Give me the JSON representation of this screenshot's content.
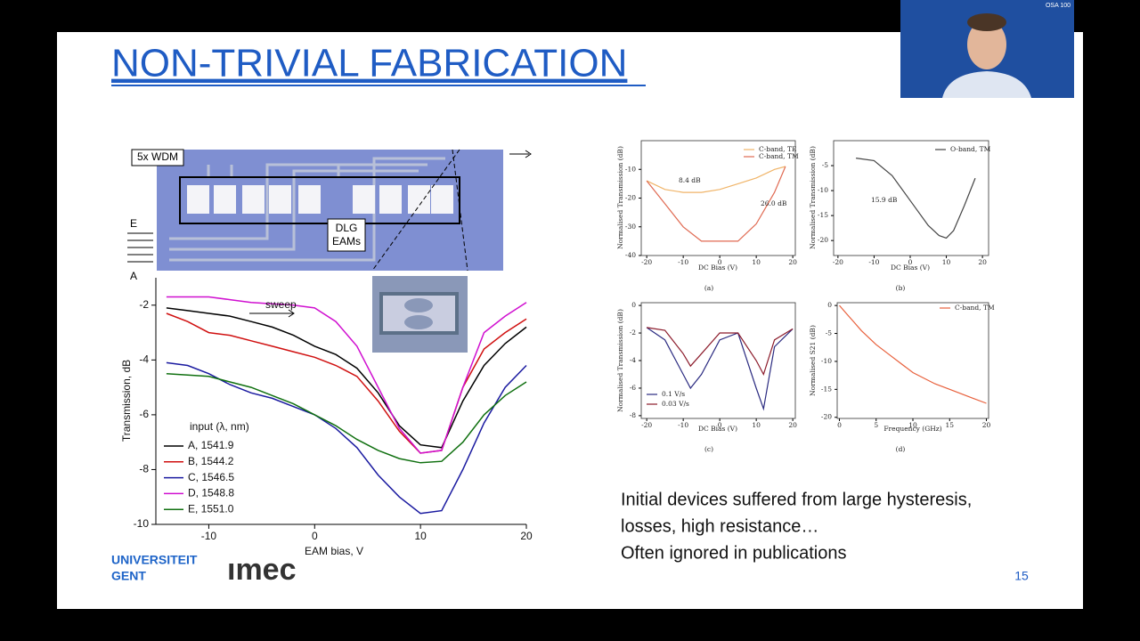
{
  "slide": {
    "title": "NON-TRIVIAL FABRICATION",
    "text_lines": [
      "Initial devices suffered from large hysteresis,",
      "losses, high resistance…",
      "Often ignored in publications"
    ],
    "page_number": "15"
  },
  "micrograph": {
    "labels": {
      "wdm": "5x WDM",
      "eam_line1": "DLG",
      "eam_line2": "EAMs",
      "e": "E",
      "a": "A"
    }
  },
  "logos": {
    "university_line1": "UNIVERSITEIT",
    "university_line2": "GENT",
    "imec": "ımec"
  },
  "webcam": {
    "badge": "OSA 100"
  },
  "chart_data": [
    {
      "type": "line",
      "xlabel": "EAM bias, V",
      "ylabel": "Transmission, dB",
      "annotation": "sweep",
      "legend_title": "input (λ, nm)",
      "x": [
        -14,
        -12,
        -10,
        -8,
        -6,
        -4,
        -2,
        0,
        2,
        4,
        6,
        8,
        10,
        12,
        14,
        16,
        18,
        20
      ],
      "xlim": [
        -15,
        20
      ],
      "xticks": [
        -10,
        0,
        10,
        20
      ],
      "ylim": [
        -10,
        -1
      ],
      "yticks": [
        -2,
        -4,
        -6,
        -8,
        -10
      ],
      "series": [
        {
          "name": "A, 1541.9",
          "color": "#000000",
          "values": [
            -2.1,
            -2.2,
            -2.3,
            -2.4,
            -2.6,
            -2.8,
            -3.1,
            -3.5,
            -3.8,
            -4.3,
            -5.2,
            -6.4,
            -7.1,
            -7.2,
            -5.5,
            -4.2,
            -3.4,
            -2.8
          ]
        },
        {
          "name": "B, 1544.2",
          "color": "#d01010",
          "values": [
            -2.3,
            -2.6,
            -3.0,
            -3.1,
            -3.3,
            -3.5,
            -3.7,
            -3.9,
            -4.2,
            -4.6,
            -5.5,
            -6.6,
            -7.4,
            -7.3,
            -5.0,
            -3.6,
            -3.0,
            -2.5
          ]
        },
        {
          "name": "C, 1546.5",
          "color": "#1a1aa0",
          "values": [
            -4.1,
            -4.2,
            -4.5,
            -4.9,
            -5.2,
            -5.4,
            -5.7,
            -6.0,
            -6.5,
            -7.2,
            -8.2,
            -9.0,
            -9.6,
            -9.5,
            -8.0,
            -6.3,
            -5.0,
            -4.2
          ]
        },
        {
          "name": "D, 1548.8",
          "color": "#d010d0",
          "values": [
            -1.7,
            -1.7,
            -1.7,
            -1.8,
            -1.9,
            -1.95,
            -2.0,
            -2.1,
            -2.6,
            -3.5,
            -5.0,
            -6.5,
            -7.4,
            -7.3,
            -5.0,
            -3.0,
            -2.4,
            -1.9
          ]
        },
        {
          "name": "E, 1551.0",
          "color": "#107010",
          "values": [
            -4.5,
            -4.55,
            -4.6,
            -4.8,
            -5.0,
            -5.3,
            -5.6,
            -6.0,
            -6.4,
            -6.9,
            -7.3,
            -7.6,
            -7.75,
            -7.7,
            -7.0,
            -6.0,
            -5.3,
            -4.8
          ]
        }
      ]
    },
    {
      "type": "line",
      "caption": "(a)",
      "xlabel": "DC Bias (V)",
      "ylabel": "Normalised Transmission (dB)",
      "annotations": [
        "8.4 dB",
        "26.0 dB"
      ],
      "x": [
        -20,
        -15,
        -10,
        -5,
        0,
        5,
        10,
        15,
        18
      ],
      "xlim": [
        -21.5,
        20.7
      ],
      "xticks": [
        -20,
        -10,
        0,
        10,
        20
      ],
      "ylim": [
        -40,
        0
      ],
      "yticks": [
        -10,
        -20,
        -30,
        -40
      ],
      "series": [
        {
          "name": "C-band, TE",
          "color": "#f0b468",
          "values": [
            -14,
            -17,
            -18,
            -18,
            -17,
            -15,
            -13,
            -10,
            -9
          ]
        },
        {
          "name": "C-band, TM",
          "color": "#e06a52",
          "values": [
            -14,
            -22,
            -30,
            -35,
            -35,
            -35,
            -29,
            -18,
            -9
          ]
        }
      ]
    },
    {
      "type": "line",
      "caption": "(b)",
      "xlabel": "DC Bias (V)",
      "ylabel": "Normalised Transmission (dB)",
      "annotations": [
        "15.9 dB"
      ],
      "x": [
        -15,
        -10,
        -5,
        0,
        5,
        8,
        10,
        12,
        15,
        18
      ],
      "xlim": [
        -21.2,
        21.7
      ],
      "xticks": [
        -20,
        -10,
        0,
        10,
        20
      ],
      "ylim": [
        -23,
        0
      ],
      "yticks": [
        -5,
        -10,
        -15,
        -20
      ],
      "series": [
        {
          "name": "O-band, TM",
          "color": "#444444",
          "values": [
            -3.5,
            -4,
            -7,
            -12,
            -17,
            -19,
            -19.5,
            -18,
            -13,
            -7.5
          ]
        }
      ]
    },
    {
      "type": "line",
      "caption": "(c)",
      "xlabel": "DC Bias (V)",
      "ylabel": "Normalised Transmission (dB)",
      "x": [
        -20,
        -15,
        -10,
        -8,
        -5,
        0,
        5,
        10,
        12,
        15,
        20
      ],
      "xlim": [
        -21.5,
        20.7
      ],
      "xticks": [
        -20,
        -10,
        0,
        10,
        20
      ],
      "ylim": [
        -8.2,
        0.2
      ],
      "yticks": [
        0,
        -2,
        -4,
        -6,
        -8
      ],
      "series": [
        {
          "name": "0.1 V/s",
          "color": "#2a2a80",
          "values": [
            -1.6,
            -2.5,
            -5,
            -6,
            -5,
            -2.5,
            -2,
            -6,
            -7.5,
            -3,
            -1.7
          ]
        },
        {
          "name": "0.03 V/s",
          "color": "#8b1a2a",
          "values": [
            -1.6,
            -1.8,
            -3.5,
            -4.4,
            -3.5,
            -2,
            -2,
            -4,
            -5,
            -2.5,
            -1.7
          ]
        }
      ]
    },
    {
      "type": "line",
      "caption": "(d)",
      "xlabel": "Frequency (GHz)",
      "ylabel": "Normalised S21 (dB)",
      "x": [
        0,
        1,
        2,
        3,
        5,
        7,
        10,
        13,
        15,
        18,
        20
      ],
      "xlim": [
        -0.3,
        20.3
      ],
      "xticks": [
        0,
        5,
        10,
        15,
        20
      ],
      "ylim": [
        -20.2,
        0.5
      ],
      "yticks": [
        0,
        -5,
        -10,
        -15,
        -20
      ],
      "series": [
        {
          "name": "C-band, TM",
          "color": "#e8603c",
          "values": [
            0,
            -1.5,
            -3,
            -4.5,
            -7,
            -9,
            -12,
            -14,
            -15,
            -16.5,
            -17.5
          ]
        }
      ]
    }
  ]
}
